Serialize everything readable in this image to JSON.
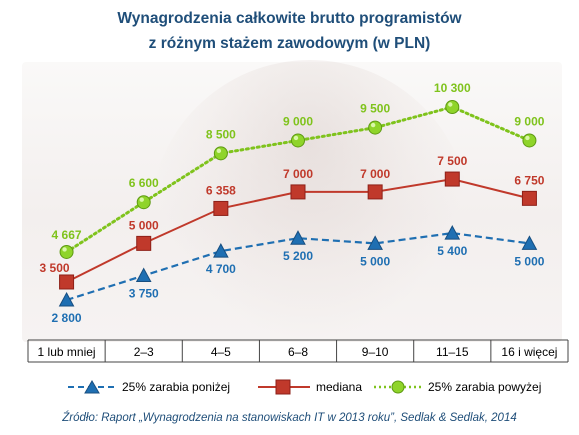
{
  "title_line1": "Wynagrodzenia całkowite brutto programistów",
  "title_line2": "z różnym stażem zawodowym (w PLN)",
  "source": "Źródło: Raport „Wynagrodzenia na stanowiskach IT w 2013 roku”, Sedlak & Sedlak, 2014",
  "colors": {
    "title": "#1f4e79",
    "low": "#1f6fb2",
    "median": "#c0392b",
    "high": "#7fc31c"
  },
  "chart_data": {
    "type": "line",
    "title": "Wynagrodzenia całkowite brutto programistów z różnym stażem zawodowym (w PLN)",
    "categories": [
      "1 lub mniej",
      "2–3",
      "4–5",
      "6–8",
      "9–10",
      "11–15",
      "16 i więcej"
    ],
    "series": [
      {
        "key": "low",
        "name": "25% zarabia poniżej",
        "values": [
          2800,
          3750,
          4700,
          5200,
          5000,
          5400,
          5000
        ],
        "labels": [
          "2 800",
          "3 750",
          "4 700",
          "5 200",
          "5 000",
          "5 400",
          "5 000"
        ],
        "line_style": "dashed",
        "marker": "triangle",
        "color": "#1f6fb2"
      },
      {
        "key": "median",
        "name": "mediana",
        "values": [
          3500,
          5000,
          6358,
          7000,
          7000,
          7500,
          6750
        ],
        "labels": [
          "3 500",
          "5 000",
          "6 358",
          "7 000",
          "7 000",
          "7 500",
          "6 750"
        ],
        "line_style": "solid",
        "marker": "square",
        "color": "#c0392b"
      },
      {
        "key": "high",
        "name": "25% zarabia powyżej",
        "values": [
          4667,
          6600,
          8500,
          9000,
          9500,
          10300,
          9000
        ],
        "labels": [
          "4 667",
          "6 600",
          "8 500",
          "9 000",
          "9 500",
          "10 300",
          "9 000"
        ],
        "line_style": "dotted",
        "marker": "circle",
        "color": "#7fc31c"
      }
    ],
    "legend_position": "bottom",
    "grid": false
  }
}
